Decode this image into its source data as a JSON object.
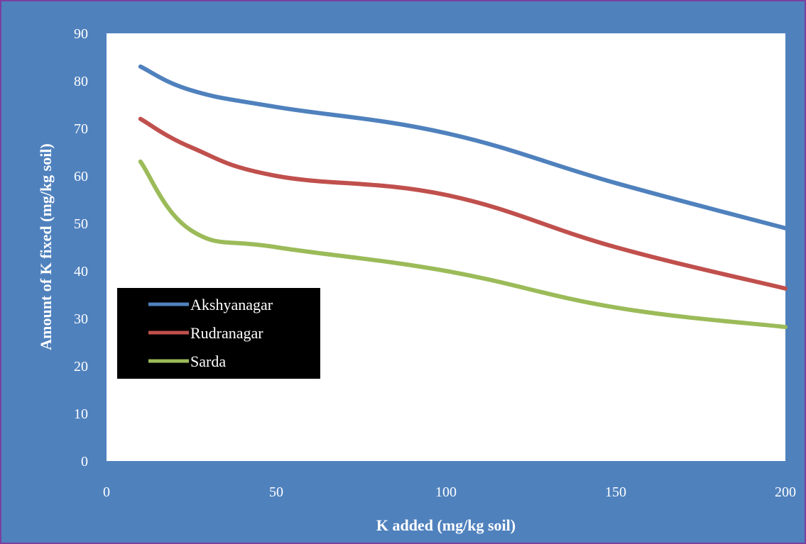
{
  "chart_data": {
    "type": "line",
    "title": "",
    "xlabel": "K added (mg/kg soil)",
    "ylabel": "Amount of K fixed (mg/kg soil)",
    "xlim": [
      0,
      200
    ],
    "ylim": [
      0,
      90
    ],
    "x_ticks": [
      0,
      50,
      100,
      150,
      200
    ],
    "y_ticks": [
      0,
      10,
      20,
      30,
      40,
      50,
      60,
      70,
      80,
      90
    ],
    "grid": false,
    "legend_position": "left",
    "series": [
      {
        "name": "Akshyanagar",
        "color": "#4f81bd",
        "x": [
          10,
          25,
          50,
          100,
          150,
          200
        ],
        "y": [
          83,
          78,
          74.5,
          69,
          58.5,
          49
        ]
      },
      {
        "name": "Rudranagar",
        "color": "#c0504d",
        "x": [
          10,
          25,
          50,
          100,
          150,
          200
        ],
        "y": [
          72,
          66,
          60,
          56,
          45,
          36.3
        ]
      },
      {
        "name": "Sarda",
        "color": "#9bbb59",
        "x": [
          10,
          25,
          50,
          100,
          150,
          200
        ],
        "y": [
          63,
          48.5,
          45,
          40,
          32.3,
          28.2
        ]
      }
    ]
  }
}
